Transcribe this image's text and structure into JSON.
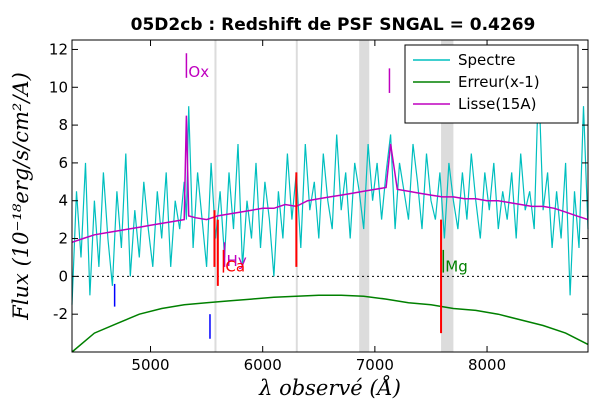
{
  "chart_data": {
    "type": "line",
    "title": "05D2cb : Redshift de PSF SNGAL = 0.4269",
    "xlabel": "λ observé (Å)",
    "ylabel": "Flux (10⁻¹⁸erg/s/cm²/A)",
    "xlim": [
      4300,
      8900
    ],
    "ylim": [
      -4,
      12.5
    ],
    "xticks": [
      5000,
      6000,
      7000,
      8000
    ],
    "yticks": [
      -2,
      0,
      2,
      4,
      6,
      8,
      10,
      12
    ],
    "grid": false,
    "legend_position": "top-right",
    "shaded_bands": [
      {
        "from": 5570,
        "to": 5585,
        "color": "#dcdcdc"
      },
      {
        "from": 6295,
        "to": 6305,
        "color": "#dcdcdc"
      },
      {
        "from": 6860,
        "to": 6950,
        "color": "#dcdcdc"
      },
      {
        "from": 7590,
        "to": 7700,
        "color": "#dcdcdc"
      }
    ],
    "zero_line": 0,
    "series": [
      {
        "name": "Spectre",
        "color": "#00bfbf",
        "x": [
          4300,
          4340,
          4380,
          4420,
          4460,
          4500,
          4540,
          4580,
          4620,
          4660,
          4700,
          4740,
          4780,
          4820,
          4860,
          4900,
          4940,
          4980,
          5020,
          5060,
          5100,
          5140,
          5180,
          5220,
          5260,
          5300,
          5320,
          5340,
          5380,
          5420,
          5460,
          5500,
          5540,
          5580,
          5620,
          5660,
          5700,
          5740,
          5780,
          5820,
          5860,
          5900,
          5940,
          5980,
          6020,
          6060,
          6100,
          6140,
          6180,
          6220,
          6260,
          6300,
          6340,
          6380,
          6420,
          6460,
          6500,
          6540,
          6580,
          6620,
          6660,
          6700,
          6740,
          6780,
          6820,
          6860,
          6900,
          6940,
          6980,
          7020,
          7060,
          7100,
          7140,
          7180,
          7220,
          7260,
          7300,
          7340,
          7380,
          7420,
          7460,
          7500,
          7540,
          7580,
          7620,
          7660,
          7700,
          7740,
          7780,
          7820,
          7860,
          7900,
          7940,
          7980,
          8020,
          8060,
          8100,
          8140,
          8180,
          8220,
          8260,
          8300,
          8340,
          8380,
          8420,
          8460,
          8500,
          8540,
          8580,
          8620,
          8660,
          8700,
          8740,
          8780,
          8820,
          8860,
          8900
        ],
        "values": [
          -1.5,
          4.5,
          1.0,
          6.0,
          -1.0,
          4.0,
          0.5,
          5.5,
          2.0,
          -0.5,
          4.5,
          1.5,
          6.5,
          0.0,
          3.5,
          1.0,
          5.0,
          2.5,
          0.5,
          4.5,
          2.0,
          5.5,
          0.5,
          4.0,
          2.5,
          5.0,
          3.0,
          9.0,
          1.5,
          5.5,
          3.0,
          0.5,
          6.0,
          2.0,
          4.5,
          1.0,
          5.5,
          2.5,
          7.0,
          0.5,
          4.0,
          2.0,
          6.0,
          1.5,
          5.0,
          3.0,
          0.0,
          4.5,
          2.0,
          6.5,
          3.0,
          5.5,
          1.5,
          7.0,
          3.5,
          5.0,
          2.0,
          6.5,
          4.0,
          2.5,
          7.5,
          3.5,
          5.5,
          2.0,
          6.0,
          4.5,
          2.5,
          7.0,
          4.0,
          6.0,
          3.0,
          5.5,
          7.5,
          2.5,
          6.0,
          4.5,
          3.0,
          7.0,
          5.0,
          2.5,
          6.5,
          4.0,
          3.0,
          5.5,
          2.0,
          6.0,
          4.0,
          2.5,
          5.5,
          3.0,
          6.5,
          4.0,
          2.0,
          5.5,
          3.5,
          6.0,
          2.5,
          4.5,
          3.0,
          5.5,
          2.0,
          6.5,
          3.5,
          4.5,
          2.5,
          10.5,
          3.5,
          5.5,
          1.5,
          4.5,
          2.0,
          6.0,
          -1.0,
          4.5,
          1.5,
          9.0,
          2.5
        ]
      },
      {
        "name": "Erreur(x-1)",
        "color": "#008000",
        "x": [
          4300,
          4500,
          4700,
          4900,
          5100,
          5300,
          5500,
          5700,
          5900,
          6100,
          6300,
          6500,
          6700,
          6900,
          7100,
          7300,
          7500,
          7700,
          7900,
          8100,
          8300,
          8500,
          8700,
          8900
        ],
        "values": [
          -4.0,
          -3.0,
          -2.5,
          -2.0,
          -1.7,
          -1.5,
          -1.4,
          -1.3,
          -1.2,
          -1.1,
          -1.05,
          -1.0,
          -1.0,
          -1.05,
          -1.2,
          -1.4,
          -1.5,
          -1.7,
          -1.8,
          -2.0,
          -2.3,
          -2.6,
          -3.0,
          -3.6
        ]
      },
      {
        "name": "Lisse(15A)",
        "color": "#bf00bf",
        "x": [
          4300,
          4400,
          4500,
          4600,
          4700,
          4800,
          4900,
          5000,
          5100,
          5200,
          5300,
          5320,
          5340,
          5400,
          5500,
          5600,
          5700,
          5800,
          5900,
          6000,
          6100,
          6200,
          6300,
          6400,
          6500,
          6600,
          6700,
          6800,
          6900,
          7000,
          7100,
          7140,
          7200,
          7300,
          7400,
          7500,
          7600,
          7700,
          7800,
          7900,
          8000,
          8100,
          8200,
          8300,
          8400,
          8500,
          8600,
          8700,
          8800,
          8900
        ],
        "values": [
          1.8,
          2.0,
          2.2,
          2.3,
          2.4,
          2.5,
          2.6,
          2.7,
          2.8,
          2.9,
          3.0,
          8.5,
          3.2,
          3.1,
          3.0,
          3.2,
          3.3,
          3.4,
          3.5,
          3.6,
          3.6,
          3.8,
          3.7,
          4.0,
          4.1,
          4.2,
          4.3,
          4.4,
          4.5,
          4.6,
          4.7,
          7.0,
          4.6,
          4.5,
          4.4,
          4.3,
          4.2,
          4.2,
          4.1,
          4.1,
          4.0,
          4.0,
          3.9,
          3.8,
          3.7,
          3.7,
          3.6,
          3.4,
          3.2,
          3.0
        ]
      }
    ],
    "spikes": [
      {
        "x": 5570,
        "from": 0.5,
        "to": 3.5,
        "color": "#ff0000"
      },
      {
        "x": 5600,
        "from": -0.5,
        "to": 3.0,
        "color": "#ff0000"
      },
      {
        "x": 6300,
        "from": 0.5,
        "to": 5.5,
        "color": "#ff0000"
      },
      {
        "x": 7590,
        "from": -3.0,
        "to": 3.0,
        "color": "#ff0000"
      }
    ],
    "line_markers": [
      {
        "x": 5320,
        "y0": 10.5,
        "y1": 11.8,
        "label": "Ox",
        "color": "#bf00bf"
      },
      {
        "x": 5660,
        "y0": 0.5,
        "y1": 1.8,
        "label": "Hy",
        "color": "#bf00bf"
      },
      {
        "x": 7130,
        "y0": 9.7,
        "y1": 11.0,
        "label": "",
        "color": "#bf00bf"
      },
      {
        "x": 5650,
        "y0": 0.2,
        "y1": 1.4,
        "label": "Ca",
        "color": "#ff0000"
      },
      {
        "x": 7610,
        "y0": 0.2,
        "y1": 1.4,
        "label": "Mg",
        "color": "#008000"
      },
      {
        "x": 4680,
        "y0": -1.6,
        "y1": -0.4,
        "label": "",
        "color": "#0000ff"
      },
      {
        "x": 5530,
        "y0": -3.3,
        "y1": -2.0,
        "label": "",
        "color": "#0000ff"
      }
    ],
    "legend": [
      {
        "label": "Spectre",
        "color": "#00bfbf"
      },
      {
        "label": "Erreur(x-1)",
        "color": "#008000"
      },
      {
        "label": "Lisse(15A)",
        "color": "#bf00bf"
      }
    ]
  }
}
